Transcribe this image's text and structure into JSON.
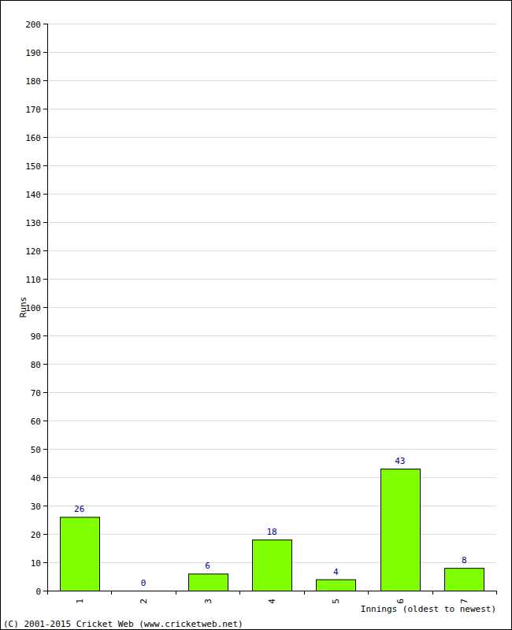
{
  "chart_data": {
    "type": "bar",
    "x_label": "Innings (oldest to newest)",
    "y_label": "Runs",
    "categories": [
      "1",
      "2",
      "3",
      "4",
      "5",
      "6",
      "7"
    ],
    "values": [
      26,
      0,
      6,
      18,
      4,
      43,
      8
    ],
    "color": "#80ff00",
    "ylim": [
      0,
      200
    ],
    "yticks": [
      0,
      10,
      20,
      30,
      40,
      50,
      60,
      70,
      80,
      90,
      100,
      110,
      120,
      130,
      140,
      150,
      160,
      170,
      180,
      190,
      200
    ],
    "grid": true,
    "data_labels": true,
    "annotations": [
      "(C) 2001-2015 Cricket Web (www.cricketweb.net)"
    ]
  }
}
